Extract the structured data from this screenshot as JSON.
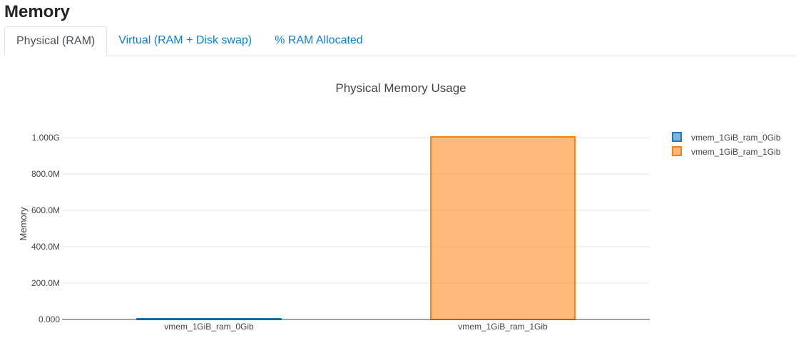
{
  "header": {
    "title": "Memory"
  },
  "tabs": [
    {
      "label": "Physical (RAM)",
      "active": true
    },
    {
      "label": "Virtual (RAM + Disk swap)",
      "active": false
    },
    {
      "label": "% RAM Allocated",
      "active": false
    }
  ],
  "chart_data": {
    "type": "bar",
    "title": "Physical Memory Usage",
    "ylabel": "Memory",
    "xlabel": "",
    "categories": [
      "vmem_1GiB_ram_0Gib",
      "vmem_1GiB_ram_1Gib"
    ],
    "series": [
      {
        "name": "vmem_1GiB_ram_0Gib",
        "color": "#1f77b4",
        "values": [
          4000000,
          null
        ]
      },
      {
        "name": "vmem_1GiB_ram_1Gib",
        "color": "#ff7f0e",
        "values": [
          null,
          1004000000
        ]
      }
    ],
    "ylim": [
      0,
      1000000000
    ],
    "yticks": [
      0,
      200000000,
      400000000,
      600000000,
      800000000,
      1000000000
    ],
    "ytick_labels": [
      "0.000",
      "200.0M",
      "400.0M",
      "600.0M",
      "800.0M",
      "1.000G"
    ],
    "grid": true,
    "legend": "right"
  }
}
